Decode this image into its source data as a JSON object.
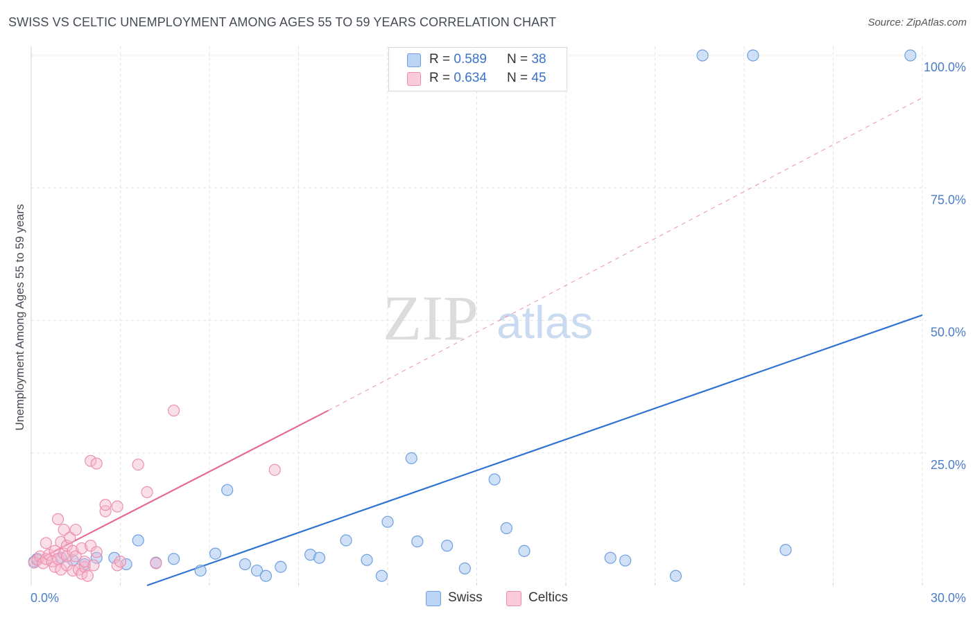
{
  "title": "SWISS VS CELTIC UNEMPLOYMENT AMONG AGES 55 TO 59 YEARS CORRELATION CHART",
  "source": "Source: ZipAtlas.com",
  "watermark": {
    "zip": "ZIP",
    "atlas": "atlas"
  },
  "colors": {
    "swiss_fill": "#a9c8f0",
    "swiss_stroke": "#6d9fe0",
    "swiss_line": "#2f72d2",
    "celtic_fill": "#f6b9cd",
    "celtic_stroke": "#ec8fae",
    "celtic_line": "#e46b93",
    "grid": "#e3e3e3",
    "tick_text": "#4a7cc9"
  },
  "legend": {
    "swiss": {
      "r_label": "R = ",
      "r_value": "0.589",
      "n_label": "N = ",
      "n_value": "38"
    },
    "celtic": {
      "r_label": "R = ",
      "r_value": "0.634",
      "n_label": "N = ",
      "n_value": "45"
    }
  },
  "bottom_legend": {
    "swiss": "Swiss",
    "celtic": "Celtics"
  },
  "chart_data": {
    "type": "scatter",
    "title": "SWISS VS CELTIC UNEMPLOYMENT AMONG AGES 55 TO 59 YEARS CORRELATION CHART",
    "xlabel": "",
    "ylabel": "Unemployment Among Ages 55 to 59 years",
    "xlim": [
      0,
      30
    ],
    "ylim": [
      0,
      100
    ],
    "x_ticks": [
      "0.0%",
      "30.0%"
    ],
    "y_ticks": [
      {
        "value": 25,
        "label": "25.0%"
      },
      {
        "value": 50,
        "label": "50.0%"
      },
      {
        "value": 75,
        "label": "75.0%"
      },
      {
        "value": 100,
        "label": "100.0%"
      }
    ],
    "grid": true,
    "series": [
      {
        "name": "Swiss",
        "color": "#6d9fe0",
        "points": [
          [
            0.1,
            4.5
          ],
          [
            0.2,
            5.0
          ],
          [
            1.0,
            5.2
          ],
          [
            1.4,
            4.8
          ],
          [
            1.8,
            4.0
          ],
          [
            2.2,
            5.2
          ],
          [
            2.8,
            5.2
          ],
          [
            3.2,
            4.0
          ],
          [
            3.6,
            8.5
          ],
          [
            4.8,
            5.0
          ],
          [
            4.2,
            4.3
          ],
          [
            5.7,
            2.8
          ],
          [
            6.2,
            6.0
          ],
          [
            6.6,
            18.0
          ],
          [
            7.2,
            4.0
          ],
          [
            7.6,
            2.8
          ],
          [
            7.9,
            1.8
          ],
          [
            8.4,
            3.5
          ],
          [
            9.4,
            5.8
          ],
          [
            9.7,
            5.2
          ],
          [
            10.6,
            8.5
          ],
          [
            11.3,
            4.8
          ],
          [
            11.8,
            1.8
          ],
          [
            12.0,
            12.0
          ],
          [
            12.8,
            24.0
          ],
          [
            13.0,
            8.3
          ],
          [
            14.0,
            7.5
          ],
          [
            14.6,
            3.2
          ],
          [
            15.6,
            20.0
          ],
          [
            16.0,
            10.8
          ],
          [
            16.6,
            6.5
          ],
          [
            19.5,
            5.2
          ],
          [
            20.0,
            4.7
          ],
          [
            21.7,
            1.8
          ],
          [
            22.6,
            100.0
          ],
          [
            24.3,
            100.0
          ],
          [
            25.4,
            6.7
          ],
          [
            29.6,
            100.0
          ]
        ],
        "trend": {
          "x": [
            3.9,
            30.0
          ],
          "y": [
            0.0,
            51.0
          ]
        }
      },
      {
        "name": "Celtics",
        "color": "#ec8fae",
        "points": [
          [
            0.1,
            4.3
          ],
          [
            0.2,
            4.8
          ],
          [
            0.3,
            5.5
          ],
          [
            0.4,
            4.2
          ],
          [
            0.5,
            5.0
          ],
          [
            0.5,
            8.0
          ],
          [
            0.6,
            5.8
          ],
          [
            0.7,
            4.5
          ],
          [
            0.8,
            3.5
          ],
          [
            0.8,
            6.5
          ],
          [
            0.9,
            5.0
          ],
          [
            0.9,
            12.5
          ],
          [
            1.0,
            8.2
          ],
          [
            1.0,
            3.0
          ],
          [
            1.1,
            6.0
          ],
          [
            1.1,
            10.5
          ],
          [
            1.2,
            3.8
          ],
          [
            1.2,
            5.5
          ],
          [
            1.2,
            7.5
          ],
          [
            1.3,
            9.0
          ],
          [
            1.4,
            6.5
          ],
          [
            1.4,
            2.8
          ],
          [
            1.5,
            10.5
          ],
          [
            1.5,
            5.5
          ],
          [
            1.6,
            3.0
          ],
          [
            1.7,
            7.0
          ],
          [
            1.7,
            2.2
          ],
          [
            1.8,
            3.5
          ],
          [
            1.8,
            4.5
          ],
          [
            1.9,
            1.8
          ],
          [
            2.0,
            7.5
          ],
          [
            2.0,
            23.5
          ],
          [
            2.1,
            3.8
          ],
          [
            2.2,
            6.3
          ],
          [
            2.2,
            23.0
          ],
          [
            2.5,
            14.0
          ],
          [
            2.5,
            15.2
          ],
          [
            2.9,
            14.9
          ],
          [
            2.9,
            3.8
          ],
          [
            3.0,
            4.5
          ],
          [
            3.6,
            22.8
          ],
          [
            3.9,
            17.6
          ],
          [
            4.2,
            4.2
          ],
          [
            4.8,
            33.0
          ],
          [
            8.2,
            21.8
          ]
        ],
        "trend": {
          "x": [
            0.0,
            10.0
          ],
          "y": [
            4.2,
            33.0
          ]
        },
        "trend_extension": {
          "x": [
            10.0,
            30.0
          ],
          "y": [
            33.0,
            92.0
          ]
        }
      }
    ]
  }
}
